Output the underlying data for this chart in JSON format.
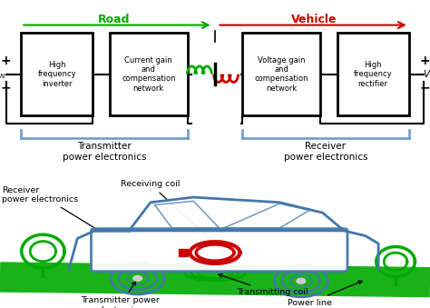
{
  "bg_color": "#ffffff",
  "box_color": "#000000",
  "road_color": "#00aa00",
  "vehicle_color": "#cc0000",
  "coil_tx_color": "#00aa00",
  "coil_rx_color": "#cc0000",
  "blue_color": "#4477aa",
  "bracket_color": "#6699cc",
  "box_labels": [
    "High\nfrequency\ninverter",
    "Current gain\nand\ncompensation\nnetwork",
    "Voltage gain\nand\ncompensation\nnetwork",
    "High\nfrequency\nrectifier"
  ],
  "transmitter_label": "Transmitter\npower electronics",
  "receiver_label": "Receiver\npower electronics",
  "road_label": "Road",
  "vehicle_label": "Vehicle",
  "figsize": [
    4.74,
    3.39
  ],
  "dpi": 100
}
